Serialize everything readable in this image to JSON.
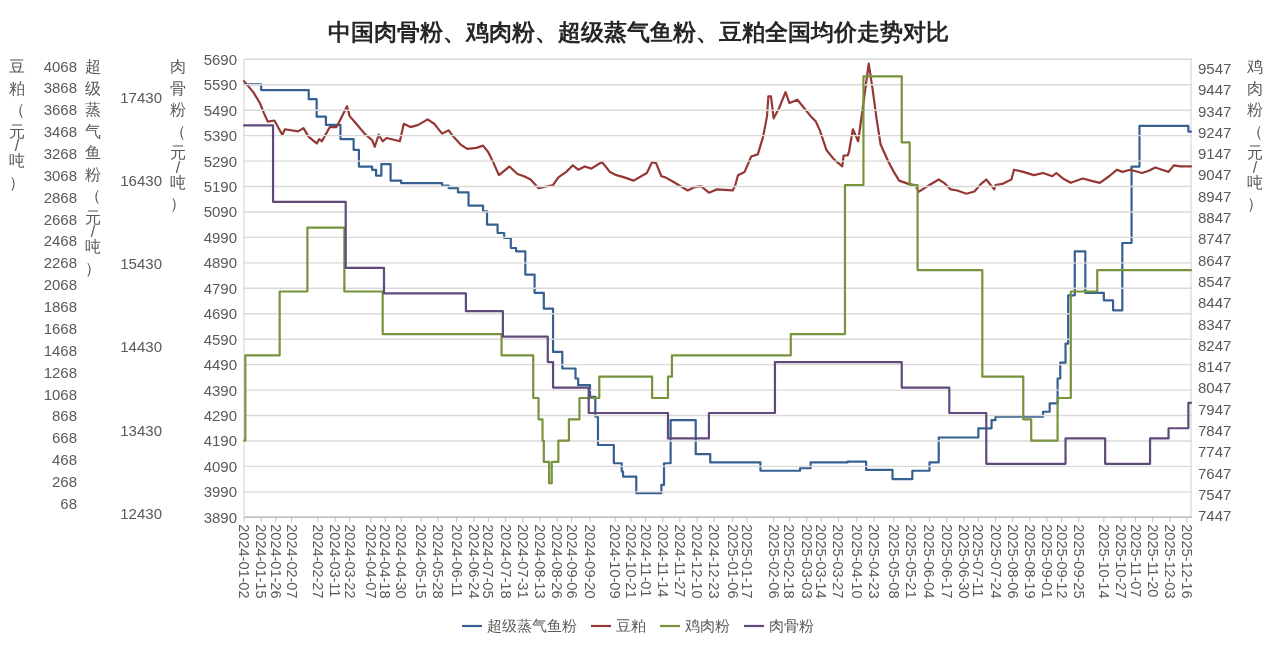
{
  "chart_data": [
    {
      "type": "step",
      "title": "中国肉骨粉、鸡肉粉、超级蒸气鱼粉、豆粕全国均价走势对比",
      "ylabel": "超级蒸气鱼粉（元/吨）",
      "xlim": [
        "2024-01-02",
        "2025-12-19"
      ],
      "ylim": [
        12380,
        17890
      ],
      "yticks": [
        12430,
        13430,
        14430,
        15430,
        16430,
        17430
      ],
      "tick_labels": "y",
      "legend": "bottom",
      "series": [
        {
          "name": "超级蒸气鱼粉",
          "color": "#376092",
          "x": [
            "2024-01-02",
            "2024-01-15",
            "2024-02-20",
            "2024-02-26",
            "2024-03-04",
            "2024-03-15",
            "2024-03-25",
            "2024-03-29",
            "2024-04-08",
            "2024-04-11",
            "2024-04-15",
            "2024-04-22",
            "2024-04-30",
            "2024-05-31",
            "2024-06-05",
            "2024-06-12",
            "2024-06-20",
            "2024-07-01",
            "2024-07-04",
            "2024-07-12",
            "2024-07-17",
            "2024-07-22",
            "2024-07-26",
            "2024-08-02",
            "2024-08-09",
            "2024-08-16",
            "2024-08-23",
            "2024-08-30",
            "2024-09-09",
            "2024-09-11",
            "2024-09-20",
            "2024-09-24",
            "2024-09-26",
            "2024-10-08",
            "2024-10-14",
            "2024-10-15",
            "2024-10-25",
            "2024-11-13",
            "2024-11-15",
            "2024-11-20",
            "2024-12-09",
            "2024-12-20",
            "2025-01-27",
            "2025-02-26",
            "2025-03-06",
            "2025-04-03",
            "2025-04-17",
            "2025-05-07",
            "2025-05-22",
            "2025-06-04",
            "2025-06-11",
            "2025-07-11",
            "2025-07-21",
            "2025-07-24",
            "2025-08-29",
            "2025-09-03",
            "2025-09-09",
            "2025-09-11",
            "2025-09-15",
            "2025-09-17",
            "2025-09-22",
            "2025-09-30",
            "2025-10-14",
            "2025-10-21",
            "2025-10-28",
            "2025-11-04",
            "2025-11-10",
            "2025-12-17",
            "2025-12-19"
          ],
          "values": [
            17590,
            17520,
            17410,
            17200,
            17100,
            16930,
            16800,
            16600,
            16560,
            16490,
            16630,
            16430,
            16400,
            16370,
            16340,
            16290,
            16130,
            16060,
            15900,
            15800,
            15740,
            15620,
            15580,
            15300,
            15080,
            14890,
            14370,
            14170,
            14050,
            13970,
            13830,
            13590,
            13250,
            13030,
            12930,
            12870,
            12670,
            12770,
            13030,
            13550,
            13140,
            13040,
            12940,
            12970,
            13040,
            13050,
            12950,
            12840,
            12940,
            13040,
            13340,
            13450,
            13550,
            13590,
            13650,
            13750,
            14050,
            14240,
            14470,
            15050,
            15580,
            15080,
            14990,
            14870,
            15680,
            16600,
            17090,
            17020,
            17020
          ]
        }
      ]
    },
    {
      "type": "line",
      "ylabel": "豆粕（元/吨）",
      "xlim": [
        "2024-01-02",
        "2025-12-19"
      ],
      "ylim": [
        -60,
        4130
      ],
      "yticks": [
        68,
        268,
        468,
        668,
        868,
        1068,
        1268,
        1468,
        1668,
        1868,
        2068,
        2268,
        2468,
        2668,
        2868,
        3068,
        3268,
        3468,
        3668,
        3868,
        4068
      ],
      "tick_labels": "y",
      "legend": "bottom",
      "series": [
        {
          "name": "豆粕",
          "color": "#953735",
          "x": [
            "2024-01-02",
            "2024-01-09",
            "2024-01-14",
            "2024-01-17",
            "2024-01-20",
            "2024-01-25",
            "2024-01-31",
            "2024-02-02",
            "2024-02-12",
            "2024-02-16",
            "2024-02-20",
            "2024-02-26",
            "2024-02-28",
            "2024-03-01",
            "2024-03-07",
            "2024-03-12",
            "2024-03-15",
            "2024-03-20",
            "2024-03-22",
            "2024-03-27",
            "2024-04-03",
            "2024-04-08",
            "2024-04-10",
            "2024-04-13",
            "2024-04-16",
            "2024-04-19",
            "2024-04-29",
            "2024-05-02",
            "2024-05-07",
            "2024-05-13",
            "2024-05-20",
            "2024-05-25",
            "2024-05-29",
            "2024-05-31",
            "2024-06-05",
            "2024-06-08",
            "2024-06-14",
            "2024-06-19",
            "2024-06-26",
            "2024-07-01",
            "2024-07-05",
            "2024-07-09",
            "2024-07-13",
            "2024-07-17",
            "2024-07-21",
            "2024-07-27",
            "2024-08-01",
            "2024-08-06",
            "2024-08-12",
            "2024-08-23",
            "2024-08-27",
            "2024-09-02",
            "2024-09-07",
            "2024-09-11",
            "2024-09-16",
            "2024-09-21",
            "2024-09-29",
            "2024-10-05",
            "2024-10-10",
            "2024-10-16",
            "2024-10-23",
            "2024-11-02",
            "2024-11-06",
            "2024-11-09",
            "2024-11-13",
            "2024-11-16",
            "2024-11-22",
            "2024-12-03",
            "2024-12-08",
            "2024-12-13",
            "2024-12-19",
            "2024-12-25",
            "2025-01-06",
            "2025-01-08",
            "2025-01-10",
            "2025-01-15",
            "2025-01-20",
            "2025-01-25",
            "2025-01-29",
            "2025-02-01",
            "2025-02-02",
            "2025-02-04",
            "2025-02-06",
            "2025-02-10",
            "2025-02-15",
            "2025-02-18",
            "2025-02-24",
            "2025-02-28",
            "2025-03-06",
            "2025-03-10",
            "2025-03-13",
            "2025-03-18",
            "2025-03-24",
            "2025-03-30",
            "2025-03-31",
            "2025-04-03",
            "2025-04-04",
            "2025-04-07",
            "2025-04-11",
            "2025-04-15",
            "2025-04-19",
            "2025-04-22",
            "2025-04-25",
            "2025-04-28",
            "2025-05-04",
            "2025-05-08",
            "2025-05-12",
            "2025-05-19",
            "2025-05-24",
            "2025-05-27",
            "2025-06-04",
            "2025-06-11",
            "2025-06-15",
            "2025-06-20",
            "2025-06-25",
            "2025-07-02",
            "2025-07-08",
            "2025-07-13",
            "2025-07-17",
            "2025-07-23",
            "2025-07-24",
            "2025-07-29",
            "2025-08-05",
            "2025-08-07",
            "2025-08-14",
            "2025-08-22",
            "2025-08-29",
            "2025-09-05",
            "2025-09-08",
            "2025-09-13",
            "2025-09-19",
            "2025-09-28",
            "2025-10-04",
            "2025-10-11",
            "2025-10-18",
            "2025-10-24",
            "2025-10-28",
            "2025-11-03",
            "2025-11-12",
            "2025-11-17",
            "2025-11-22",
            "2025-11-27",
            "2025-12-02",
            "2025-12-06",
            "2025-12-11",
            "2025-12-19"
          ],
          "values": [
            3930,
            3830,
            3730,
            3640,
            3560,
            3570,
            3440,
            3490,
            3470,
            3500,
            3420,
            3360,
            3400,
            3380,
            3510,
            3510,
            3580,
            3700,
            3610,
            3540,
            3440,
            3390,
            3330,
            3440,
            3380,
            3410,
            3380,
            3540,
            3510,
            3530,
            3580,
            3540,
            3480,
            3450,
            3480,
            3430,
            3350,
            3310,
            3320,
            3340,
            3280,
            3180,
            3070,
            3110,
            3150,
            3080,
            3060,
            3030,
            2950,
            2980,
            3050,
            3100,
            3160,
            3120,
            3150,
            3130,
            3190,
            3100,
            3070,
            3050,
            3020,
            3090,
            3190,
            3180,
            3060,
            3050,
            3010,
            2930,
            2960,
            2970,
            2910,
            2940,
            2930,
            2980,
            3070,
            3100,
            3240,
            3260,
            3420,
            3610,
            3790,
            3790,
            3590,
            3680,
            3830,
            3730,
            3760,
            3700,
            3610,
            3560,
            3480,
            3300,
            3210,
            3150,
            3250,
            3250,
            3280,
            3490,
            3380,
            3730,
            4090,
            3850,
            3580,
            3350,
            3190,
            3100,
            3020,
            2990,
            2980,
            2920,
            2980,
            3030,
            3000,
            2940,
            2930,
            2900,
            2920,
            2990,
            3030,
            2940,
            2980,
            2990,
            3030,
            3120,
            3100,
            3070,
            3090,
            3060,
            3090,
            3040,
            3000,
            3040,
            3020,
            3000,
            3060,
            3120,
            3100,
            3120,
            3090,
            3110,
            3140,
            3120,
            3100,
            3160,
            3150,
            3150
          ]
        }
      ]
    },
    {
      "type": "step",
      "ylabel": "肉骨粉（元/吨）",
      "y2label": "鸡肉粉（元/吨）",
      "xlim": [
        "2024-01-02",
        "2025-12-19"
      ],
      "xticks": [
        "2024-01-02",
        "2024-01-15",
        "2024-01-26",
        "2024-02-07",
        "2024-02-27",
        "2024-03-11",
        "2024-03-22",
        "2024-04-07",
        "2024-04-18",
        "2024-04-30",
        "2024-05-15",
        "2024-05-28",
        "2024-06-11",
        "2024-06-24",
        "2024-07-05",
        "2024-07-18",
        "2024-07-31",
        "2024-08-13",
        "2024-08-26",
        "2024-09-06",
        "2024-09-20",
        "2024-10-09",
        "2024-10-21",
        "2024-11-01",
        "2024-11-14",
        "2024-11-27",
        "2024-12-10",
        "2024-12-23",
        "2025-01-06",
        "2025-01-17",
        "2025-02-06",
        "2025-02-18",
        "2025-03-03",
        "2025-03-14",
        "2025-03-27",
        "2025-04-10",
        "2025-04-23",
        "2025-05-08",
        "2025-05-21",
        "2025-06-04",
        "2025-06-17",
        "2025-06-30",
        "2025-07-11",
        "2025-07-24",
        "2025-08-06",
        "2025-08-19",
        "2025-09-01",
        "2025-09-12",
        "2025-09-25",
        "2025-10-14",
        "2025-10-27",
        "2025-11-07",
        "2025-11-20",
        "2025-12-03",
        "2025-12-16"
      ],
      "ylim": [
        3890,
        5690
      ],
      "yticks": [
        3890,
        3990,
        4090,
        4190,
        4290,
        4390,
        4490,
        4590,
        4690,
        4790,
        4890,
        4990,
        5090,
        5190,
        5290,
        5390,
        5490,
        5590,
        5690
      ],
      "y2lim": [
        7440,
        9590
      ],
      "y2ticks": [
        7447,
        7547,
        7647,
        7747,
        7847,
        7947,
        8047,
        8147,
        8247,
        8347,
        8447,
        8547,
        8647,
        8747,
        8847,
        8947,
        9047,
        9147,
        9247,
        9347,
        9447,
        9547
      ],
      "grid": "y",
      "legend": "bottom",
      "series": [
        {
          "name": "鸡肉粉",
          "color": "#77933c",
          "axis": "y2",
          "x": [
            "2024-01-02",
            "2024-01-03",
            "2024-01-29",
            "2024-02-19",
            "2024-03-18",
            "2024-04-16",
            "2024-07-15",
            "2024-08-08",
            "2024-08-12",
            "2024-08-15",
            "2024-08-16",
            "2024-08-20",
            "2024-08-22",
            "2024-08-27",
            "2024-09-04",
            "2024-09-12",
            "2024-09-27",
            "2024-11-06",
            "2024-11-18",
            "2024-11-21",
            "2025-02-19",
            "2025-04-01",
            "2025-04-15",
            "2025-05-14",
            "2025-05-20",
            "2025-05-26",
            "2025-07-14",
            "2025-08-14",
            "2025-08-20",
            "2025-09-09",
            "2025-09-19",
            "2025-10-09",
            "2025-12-19"
          ],
          "values": [
            7800,
            8200,
            8500,
            8800,
            8500,
            8300,
            8200,
            8000,
            7900,
            7800,
            7700,
            7600,
            7700,
            7800,
            7900,
            8000,
            8100,
            8000,
            8100,
            8200,
            8300,
            9000,
            9510,
            9200,
            9000,
            8600,
            8100,
            7900,
            7800,
            8000,
            8500,
            8600,
            8600
          ]
        },
        {
          "name": "肉骨粉",
          "color": "#604a7b",
          "x": [
            "2024-01-02",
            "2024-01-24",
            "2024-03-19",
            "2024-04-17",
            "2024-06-18",
            "2024-07-16",
            "2024-08-19",
            "2024-08-23",
            "2024-09-19",
            "2024-11-18",
            "2024-12-19",
            "2025-02-07",
            "2025-05-14",
            "2025-06-19",
            "2025-07-17",
            "2025-09-15",
            "2025-10-15",
            "2025-11-18",
            "2025-12-02",
            "2025-12-17",
            "2025-12-19"
          ],
          "values": [
            5430,
            5130,
            4870,
            4770,
            4700,
            4600,
            4500,
            4400,
            4300,
            4200,
            4300,
            4500,
            4400,
            4300,
            4100,
            4200,
            4100,
            4200,
            4240,
            4340,
            4340
          ]
        }
      ]
    }
  ]
}
